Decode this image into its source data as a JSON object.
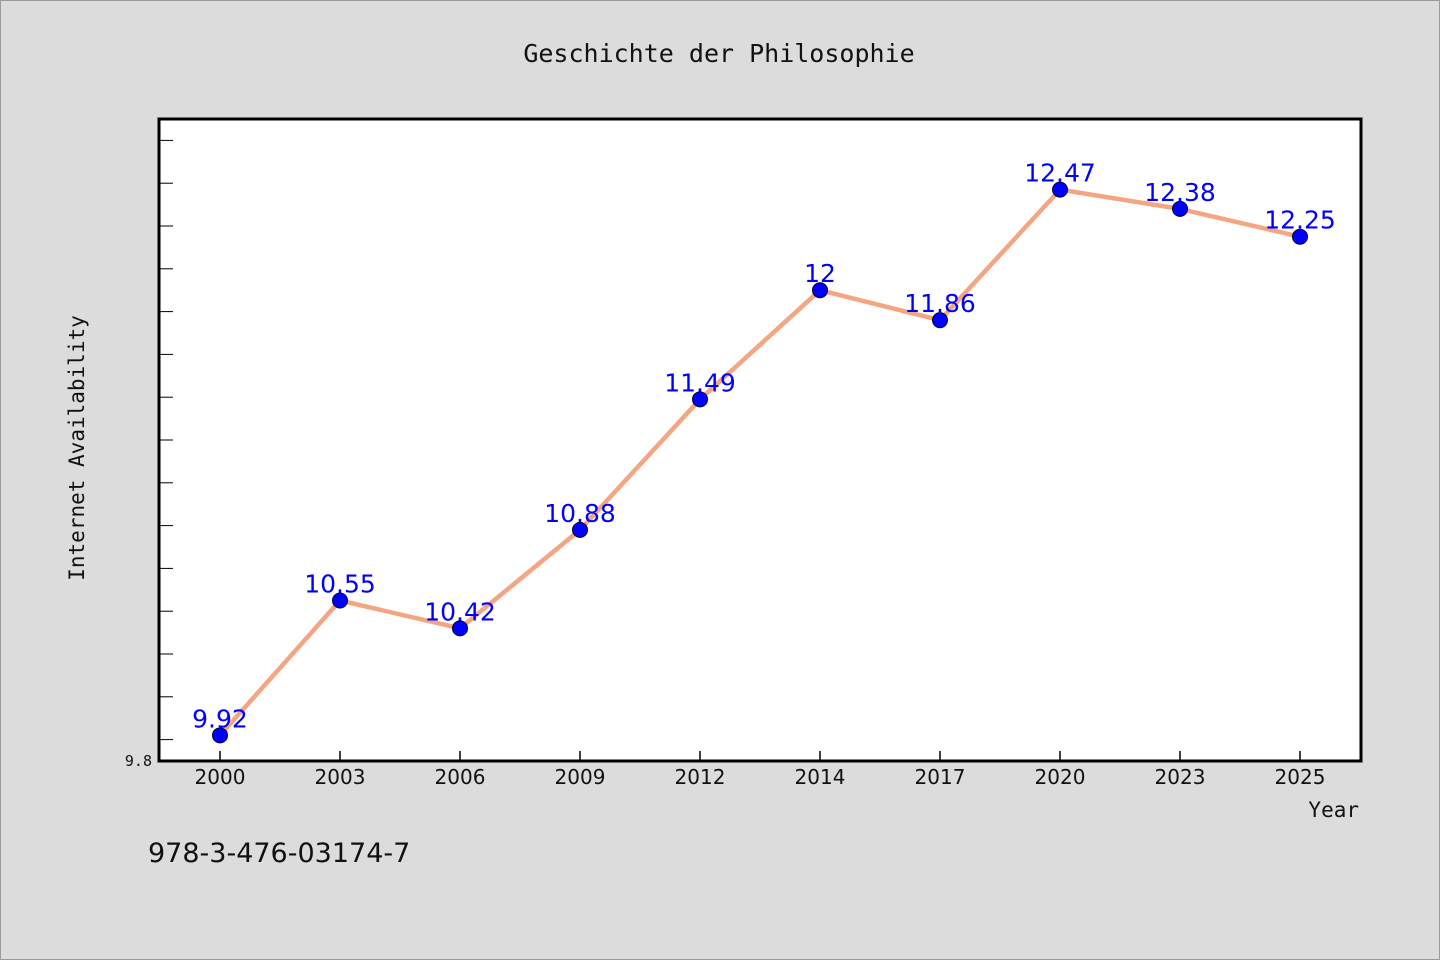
{
  "chart_data": {
    "type": "line",
    "title": "Geschichte der Philosophie",
    "xlabel": "Year",
    "ylabel": "Internet Availability",
    "categories": [
      "2000",
      "2003",
      "2006",
      "2009",
      "2012",
      "2014",
      "2017",
      "2020",
      "2023",
      "2025"
    ],
    "series": [
      {
        "values": [
          9.92,
          10.55,
          10.42,
          10.88,
          11.49,
          12,
          11.86,
          12.47,
          12.38,
          12.25
        ],
        "data_labels": [
          "9.92",
          "10.55",
          "10.42",
          "10.88",
          "11.49",
          "12",
          "11.86",
          "12.47",
          "12.38",
          "12.25"
        ],
        "line_color": "#f4a582",
        "marker_color": "#0000ff"
      }
    ],
    "ylim": [
      9.8,
      12.8
    ],
    "ytick_labels": [
      "9.8"
    ],
    "grid": false,
    "legend": "none"
  },
  "footer": {
    "isbn": "978-3-476-03174-7"
  },
  "colors": {
    "background": "#dcdcdc",
    "plot_background": "#ffffff",
    "line": "#f4a582",
    "marker": "#0000ff",
    "data_label": "#0000ff"
  }
}
